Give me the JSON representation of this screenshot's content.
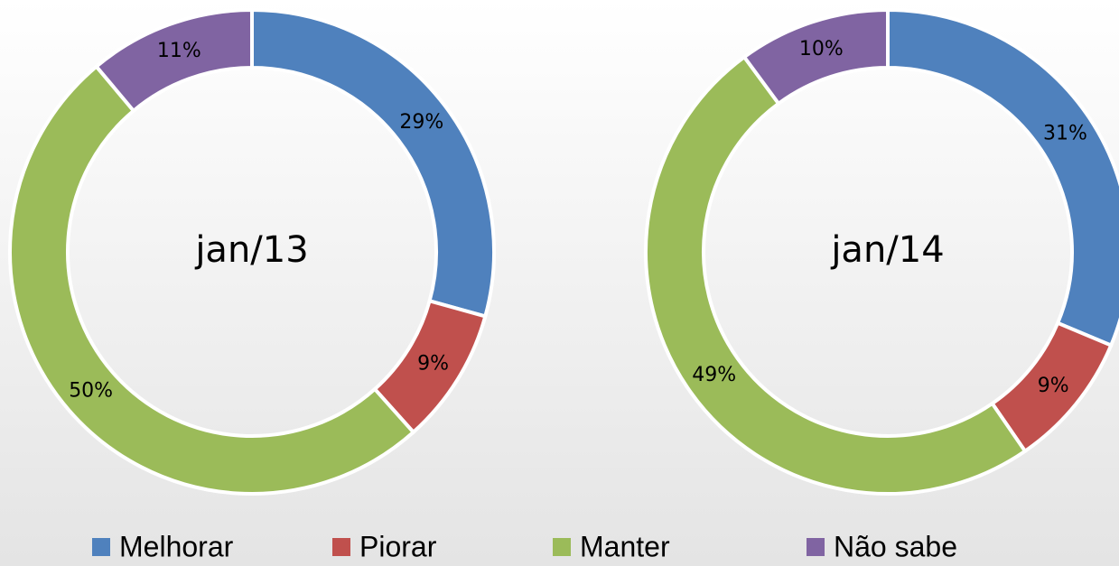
{
  "chart_data": [
    {
      "type": "donut",
      "title": "jan/13",
      "categories": [
        "Melhorar",
        "Piorar",
        "Manter",
        "Não sabe"
      ],
      "values": [
        29,
        9,
        50,
        11
      ],
      "value_labels": [
        "29%",
        "9%",
        "50%",
        "11%"
      ],
      "colors": [
        "#4f81bd",
        "#c0504d",
        "#9bbb59",
        "#8064a2"
      ],
      "legend": "bottom"
    },
    {
      "type": "donut",
      "title": "jan/14",
      "categories": [
        "Melhorar",
        "Piorar",
        "Manter",
        "Não sabe"
      ],
      "values": [
        31,
        9,
        49,
        10
      ],
      "value_labels": [
        "31%",
        "9%",
        "49%",
        "10%"
      ],
      "colors": [
        "#4f81bd",
        "#c0504d",
        "#9bbb59",
        "#8064a2"
      ],
      "legend": "bottom"
    }
  ]
}
